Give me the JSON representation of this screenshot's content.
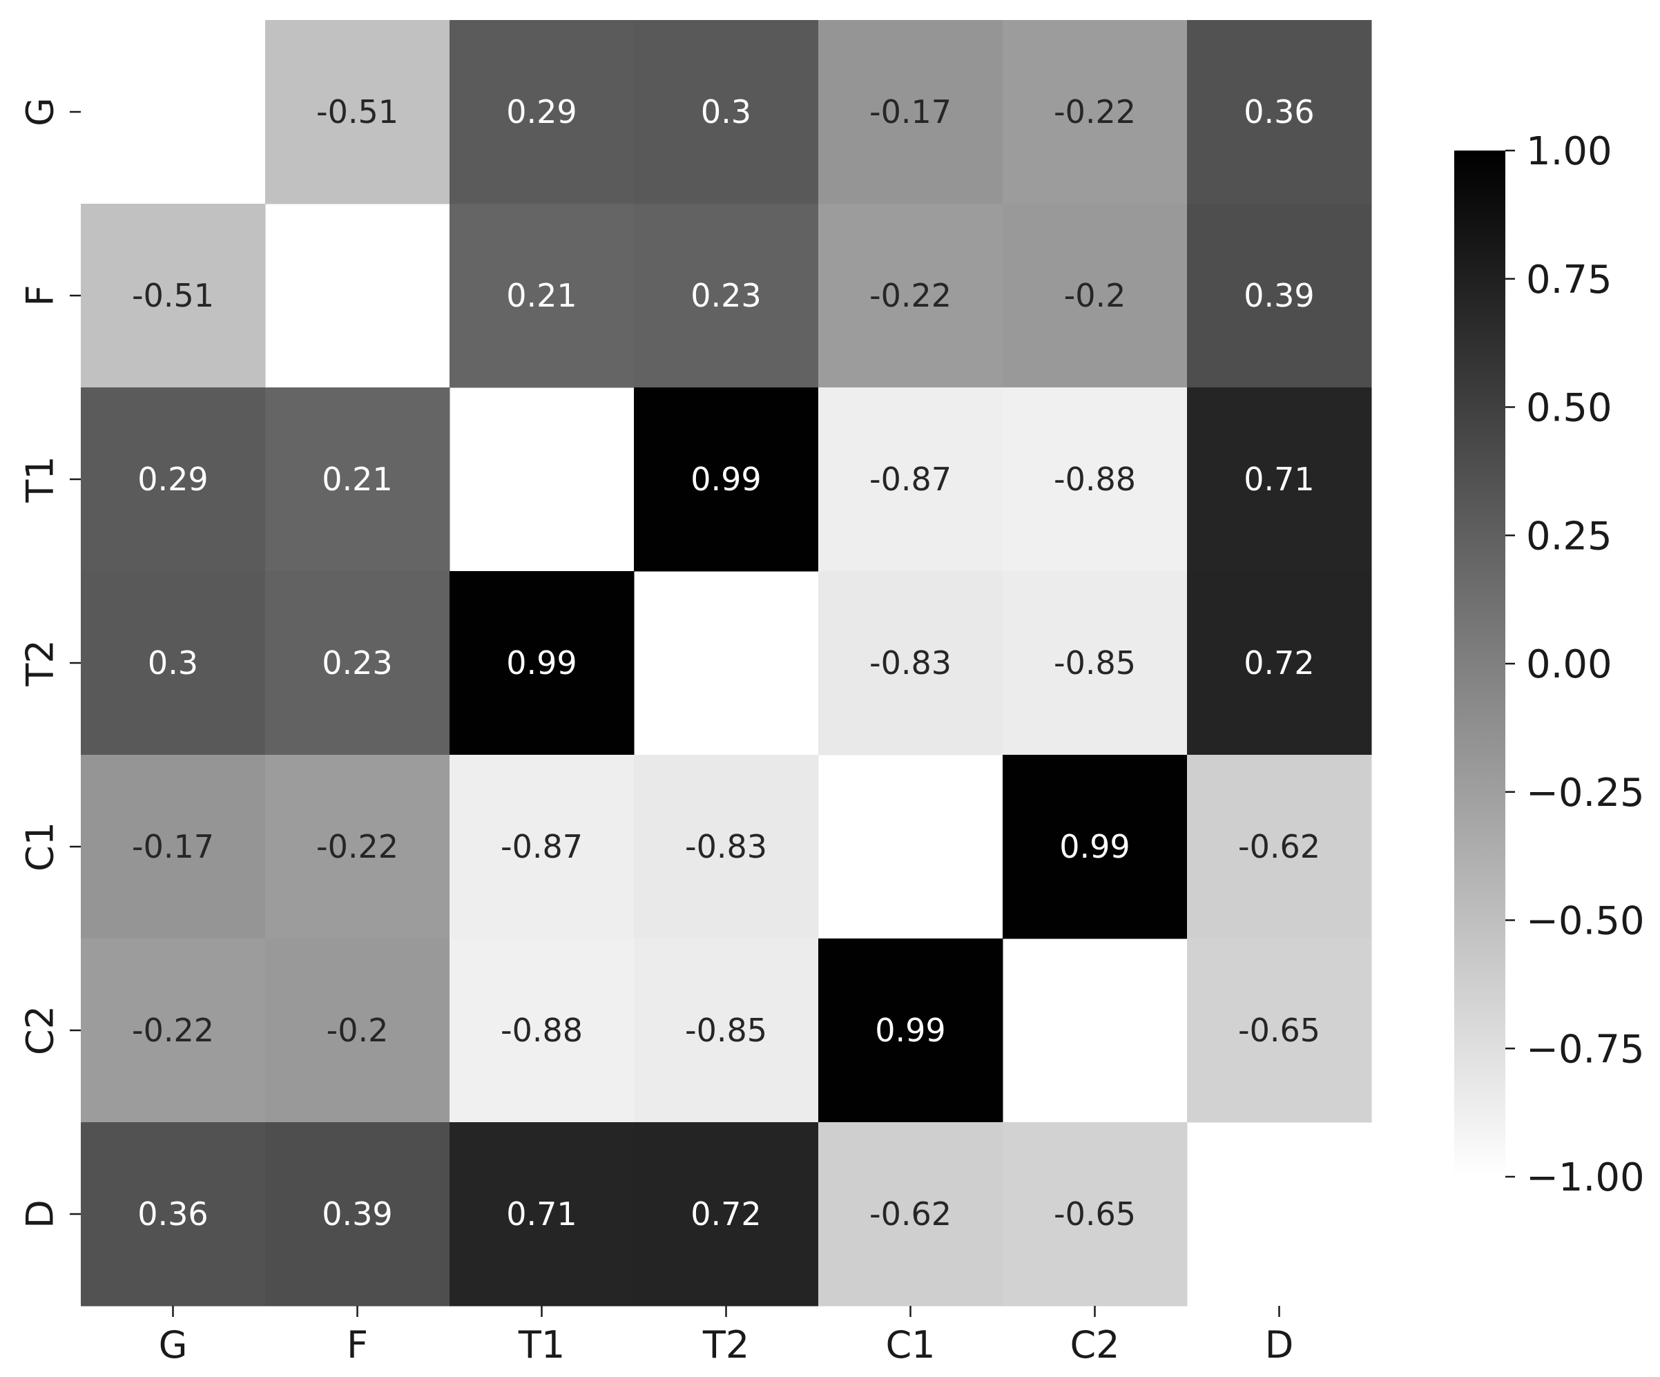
{
  "chart_data": {
    "type": "heatmap",
    "title": "",
    "xlabel": "",
    "ylabel": "",
    "rows": [
      "G",
      "F",
      "T1",
      "T2",
      "C1",
      "C2",
      "D"
    ],
    "columns": [
      "G",
      "F",
      "T1",
      "T2",
      "C1",
      "C2",
      "D"
    ],
    "values": [
      [
        null,
        -0.51,
        0.29,
        0.3,
        -0.17,
        -0.22,
        0.36
      ],
      [
        -0.51,
        null,
        0.21,
        0.23,
        -0.22,
        -0.2,
        0.39
      ],
      [
        0.29,
        0.21,
        null,
        0.99,
        -0.87,
        -0.88,
        0.71
      ],
      [
        0.3,
        0.23,
        0.99,
        null,
        -0.83,
        -0.85,
        0.72
      ],
      [
        -0.17,
        -0.22,
        -0.87,
        -0.83,
        null,
        0.99,
        -0.62
      ],
      [
        -0.22,
        -0.2,
        -0.88,
        -0.85,
        0.99,
        null,
        -0.65
      ],
      [
        0.36,
        0.39,
        0.71,
        0.72,
        -0.62,
        -0.65,
        null
      ]
    ],
    "value_range": [
      -1.0,
      1.0
    ],
    "colormap": "grayscale, white at -1.00 to black at 1.00",
    "colorbar": {
      "position": "right",
      "ticks": [
        1.0,
        0.75,
        0.5,
        0.25,
        0.0,
        -0.25,
        -0.5,
        -0.75,
        -1.0
      ],
      "tick_labels": [
        "1.00",
        "0.75",
        "0.50",
        "0.25",
        "0.00",
        "−0.25",
        "−0.50",
        "−0.75",
        "−1.00"
      ]
    },
    "grid": false,
    "colors": {
      "low": "#ffffff",
      "high": "#000000",
      "annotation_dark": "#262626",
      "annotation_light": "#ffffff"
    }
  }
}
